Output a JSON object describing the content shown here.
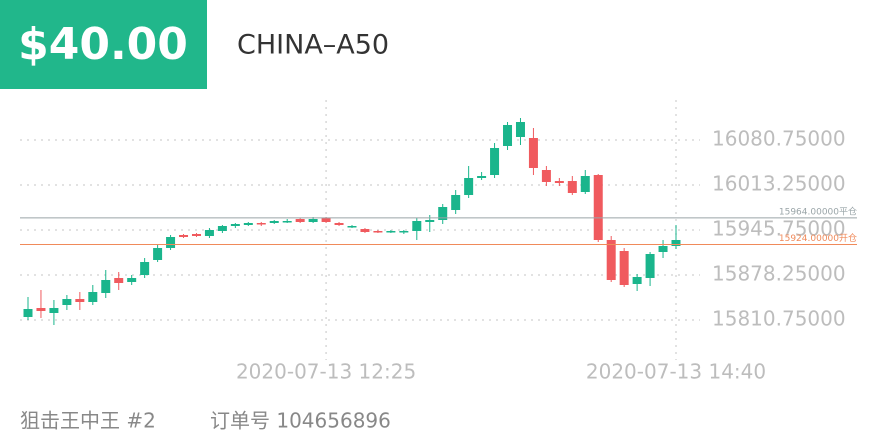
{
  "header": {
    "amount": "$40.00",
    "symbol": "CHINA–A50"
  },
  "chart_data": {
    "type": "candlestick",
    "categories": [
      null,
      null,
      null,
      null,
      null,
      null,
      null,
      null,
      null,
      null,
      null,
      null,
      null,
      null,
      null,
      null,
      null,
      null,
      null,
      null,
      null,
      null,
      null,
      "2020-07-13 12:25",
      null,
      null,
      null,
      null,
      null,
      null,
      null,
      null,
      null,
      null,
      null,
      null,
      null,
      null,
      null,
      null,
      null,
      null,
      null,
      null,
      null,
      null,
      null,
      null,
      null,
      null,
      "2020-07-13 14:40"
    ],
    "open": [
      15815.25,
      15828.75,
      15821.25,
      15833.25,
      15842.25,
      15837.75,
      15851.25,
      15873.75,
      15867.75,
      15878.25,
      15900.75,
      15918.75,
      15938.25,
      15939.75,
      15936.75,
      15944.25,
      15951.75,
      15953.25,
      15956.25,
      15956.25,
      15957.75,
      15962.25,
      15957.75,
      15963.75,
      15956.25,
      15950.25,
      15947.25,
      15944.25,
      15942.75,
      15942.75,
      15944.25,
      15957.75,
      15960.75,
      15975.75,
      15998.25,
      16023.75,
      16028.25,
      16071.75,
      16085.25,
      16083.75,
      16035.75,
      16019.25,
      16019.25,
      16002.75,
      16028.25,
      15930.75,
      15914.25,
      15864.75,
      15873.75,
      15912.75,
      15921.75
    ],
    "high": [
      15845.25,
      15855.75,
      15840.75,
      15848.25,
      15852.75,
      15863.25,
      15885.75,
      15882.75,
      15878.25,
      15903.75,
      15924.75,
      15938.25,
      15939.75,
      15941.25,
      15948.75,
      15953.25,
      15956.25,
      15957.75,
      15957.75,
      15960.75,
      15962.25,
      15963.75,
      15965.25,
      15965.25,
      15957.75,
      15953.25,
      15948.75,
      15945.75,
      15945.75,
      15945.75,
      15963.75,
      15968.25,
      15984.75,
      16005.75,
      16041.75,
      16032.75,
      16076.25,
      16107.75,
      16113.75,
      16098.75,
      16041.75,
      16023.75,
      16026.75,
      16035.75,
      16029.75,
      15936.75,
      15918.75,
      15879.75,
      15912.75,
      15930.75,
      15953.25
    ],
    "low": [
      15810.75,
      15813.75,
      15803.25,
      15825.75,
      15825.75,
      15833.25,
      15843.75,
      15855.75,
      15863.25,
      15873.75,
      15897.75,
      15915.75,
      15933.75,
      15935.25,
      15933.75,
      15941.25,
      15948.75,
      15951.75,
      15951.75,
      15954.75,
      15956.25,
      15956.25,
      15956.25,
      15956.25,
      15951.75,
      15948.75,
      15941.25,
      15941.25,
      15941.25,
      15939.75,
      15930.75,
      15942.75,
      15954.75,
      15969.75,
      15993.75,
      16020.75,
      16023.75,
      16065.75,
      16073.25,
      16028.25,
      16011.75,
      16011.75,
      15998.25,
      15999.75,
      15927.75,
      15867.75,
      15860.25,
      15854.25,
      15861.75,
      15903.75,
      15917.25
    ],
    "close": [
      15827.25,
      15824.25,
      15828.75,
      15842.25,
      15837.75,
      15852.75,
      15870.75,
      15866.25,
      15873.75,
      15897.75,
      15918.75,
      15935.25,
      15935.25,
      15936.75,
      15945.75,
      15951.75,
      15954.75,
      15956.25,
      15954.75,
      15959.25,
      15959.25,
      15957.75,
      15962.25,
      15957.75,
      15953.25,
      15951.75,
      15942.75,
      15942.75,
      15944.25,
      15944.25,
      15959.25,
      15960.75,
      15980.25,
      15998.25,
      16023.75,
      16026.75,
      16068.75,
      16103.25,
      16107.75,
      16038.75,
      16017.75,
      16016.25,
      16001.25,
      16026.75,
      15930.75,
      15870.75,
      15863.25,
      15875.25,
      15909.75,
      15921.75,
      15930.75
    ],
    "up_color": "#1ab58c",
    "down_color": "#f05a5e",
    "ylim": [
      15750.75,
      16140.75
    ],
    "yticks": [
      {
        "value": 15810.75,
        "label": "15810.75000"
      },
      {
        "value": 15878.25,
        "label": "15878.25000"
      },
      {
        "value": 15945.75,
        "label": "15945.75000"
      },
      {
        "value": 16013.25,
        "label": "16013.25000"
      },
      {
        "value": 16080.75,
        "label": "16080.75000"
      }
    ],
    "grid": true,
    "lines": [
      {
        "value": 15964,
        "label": "15964.00000平仓",
        "color": "#9aa5a8"
      },
      {
        "value": 15924,
        "label": "15924.00000开仓",
        "color": "#f08a5a"
      }
    ]
  },
  "footer": {
    "name": "狙击王中王 #2",
    "order": "订单号 104656896"
  }
}
